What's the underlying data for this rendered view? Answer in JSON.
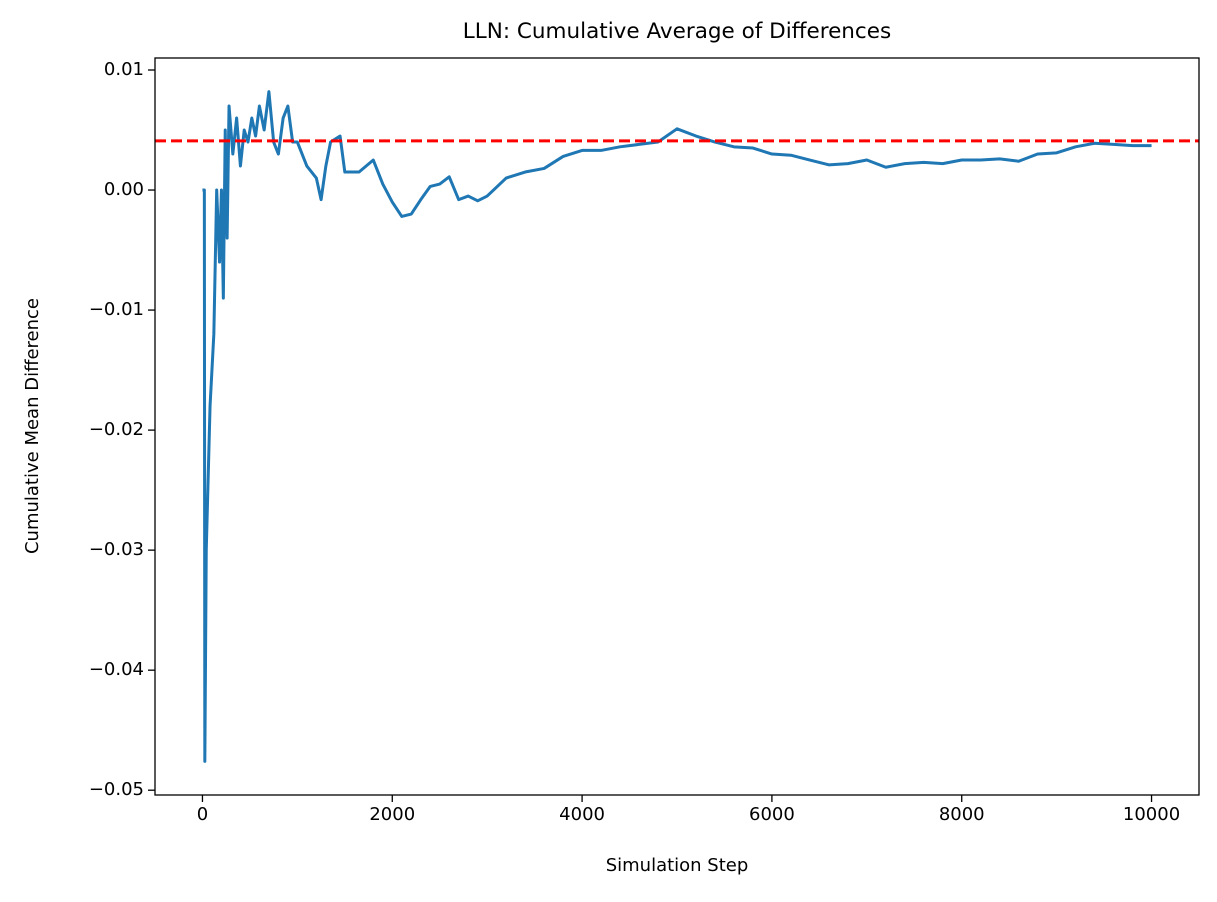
{
  "chart_data": {
    "type": "line",
    "title": "LLN: Cumulative Average of Differences",
    "x_label": "Simulation Step",
    "y_label": "Cumulative Mean Difference",
    "x": [
      0,
      20,
      25,
      40,
      80,
      120,
      150,
      180,
      200,
      220,
      240,
      260,
      280,
      320,
      360,
      400,
      440,
      480,
      520,
      560,
      600,
      650,
      700,
      750,
      800,
      850,
      900,
      950,
      1000,
      1100,
      1200,
      1250,
      1300,
      1350,
      1450,
      1500,
      1650,
      1800,
      1900,
      2000,
      2100,
      2200,
      2300,
      2400,
      2500,
      2600,
      2700,
      2800,
      2900,
      3000,
      3200,
      3400,
      3600,
      3800,
      4000,
      4200,
      4400,
      4600,
      4800,
      5000,
      5200,
      5400,
      5600,
      5800,
      6000,
      6200,
      6400,
      6600,
      6800,
      7000,
      7200,
      7400,
      7600,
      7800,
      8000,
      8200,
      8400,
      8600,
      8800,
      9000,
      9200,
      9400,
      9600,
      9800,
      10000
    ],
    "series": [
      {
        "color": "#1f77b4",
        "values": [
          0,
          0,
          -0.0476,
          -0.03,
          -0.018,
          -0.012,
          0,
          -0.006,
          0,
          -0.009,
          0.005,
          -0.004,
          0.007,
          0.003,
          0.006,
          0.002,
          0.005,
          0.004,
          0.006,
          0.0045,
          0.007,
          0.005,
          0.0082,
          0.004,
          0.003,
          0.006,
          0.007,
          0.004,
          0.004,
          0.002,
          0.001,
          -0.0008,
          0.002,
          0.004,
          0.0045,
          0.0015,
          0.0015,
          0.0025,
          0.0005,
          -0.001,
          -0.0022,
          -0.002,
          -0.0008,
          0.0003,
          0.0005,
          0.0011,
          -0.0008,
          -0.0005,
          -0.0009,
          -0.0005,
          0.001,
          0.0015,
          0.0018,
          0.0028,
          0.0033,
          0.0033,
          0.0036,
          0.0038,
          0.004,
          0.0051,
          0.0045,
          0.004,
          0.0036,
          0.0035,
          0.003,
          0.0029,
          0.0025,
          0.0021,
          0.0022,
          0.0025,
          0.0019,
          0.0022,
          0.0023,
          0.0022,
          0.0025,
          0.0025,
          0.0026,
          0.0024,
          0.003,
          0.0031,
          0.0036,
          0.0039,
          0.0038,
          0.0037,
          0.0037
        ]
      }
    ],
    "reference_line": {
      "value": 0.0041,
      "color": "red",
      "style": "dashed"
    },
    "xlim": [
      -500,
      10500
    ],
    "xticks": [
      0,
      2000,
      4000,
      6000,
      8000,
      10000
    ],
    "ylim": [
      -0.0504,
      0.011
    ],
    "yticks": [
      {
        "value": -0.05,
        "label": "−0.05"
      },
      {
        "value": -0.04,
        "label": "−0.04"
      },
      {
        "value": -0.03,
        "label": "−0.03"
      },
      {
        "value": -0.02,
        "label": "−0.02"
      },
      {
        "value": -0.01,
        "label": "−0.01"
      },
      {
        "value": 0,
        "label": "0.00"
      },
      0.01
    ],
    "grid": false
  }
}
